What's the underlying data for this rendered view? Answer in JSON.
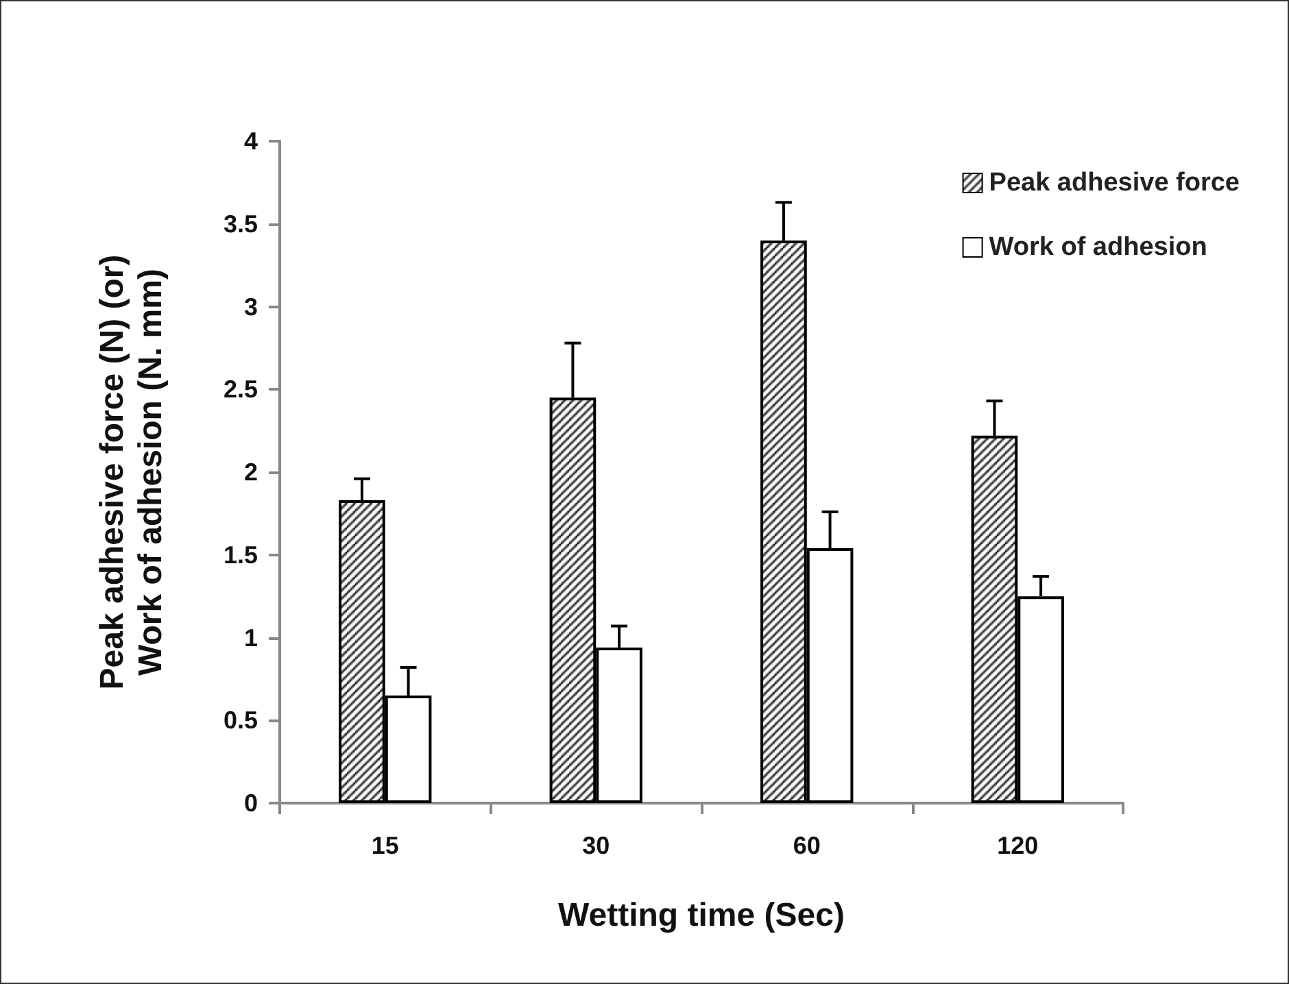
{
  "chart_data": {
    "type": "bar",
    "xlabel": "Wetting time (Sec)",
    "ylabel": "Peak adhesive force (N) (or)\nWork of adhesion (N. mm)",
    "categories": [
      "15",
      "30",
      "60",
      "120"
    ],
    "series": [
      {
        "name": "Peak adhesive force",
        "color": "#000000",
        "values": [
          1.83,
          2.45,
          3.4,
          2.22
        ],
        "errors": [
          [
            1.83,
            1.96
          ],
          [
            2.45,
            2.78
          ],
          [
            3.4,
            3.63
          ],
          [
            2.22,
            2.43
          ]
        ]
      },
      {
        "name": "Work of adhesion",
        "color": "#ffffff",
        "values": [
          0.65,
          0.94,
          1.54,
          1.25
        ],
        "errors": [
          [
            0.65,
            0.82
          ],
          [
            0.94,
            1.07
          ],
          [
            1.54,
            1.76
          ],
          [
            1.25,
            1.37
          ]
        ]
      }
    ],
    "ylim": [
      0,
      4
    ],
    "yticks": [
      0,
      0.5,
      1,
      1.5,
      2,
      2.5,
      3,
      3.5,
      4
    ],
    "grid": false,
    "legend": "top right"
  }
}
